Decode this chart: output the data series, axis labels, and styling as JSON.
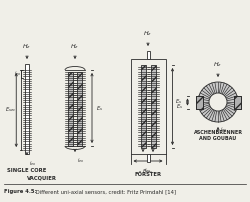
{
  "bg_color": "#f0efe8",
  "line_color": "#2a2a2a",
  "core_fill": "#b0b0b0",
  "labels": {
    "single_core": "SINGLE CORE",
    "vacquier": "VACQUIER",
    "forster": "FÖRSTER",
    "aschenbrenner": "ASCHENBRENNER",
    "and_goubau": "AND GOUBAU"
  },
  "caption_bold": "Figure 4.5:",
  "caption_rest": " Different uni-axial sensors, credit: Fritz Primdahl [14]"
}
